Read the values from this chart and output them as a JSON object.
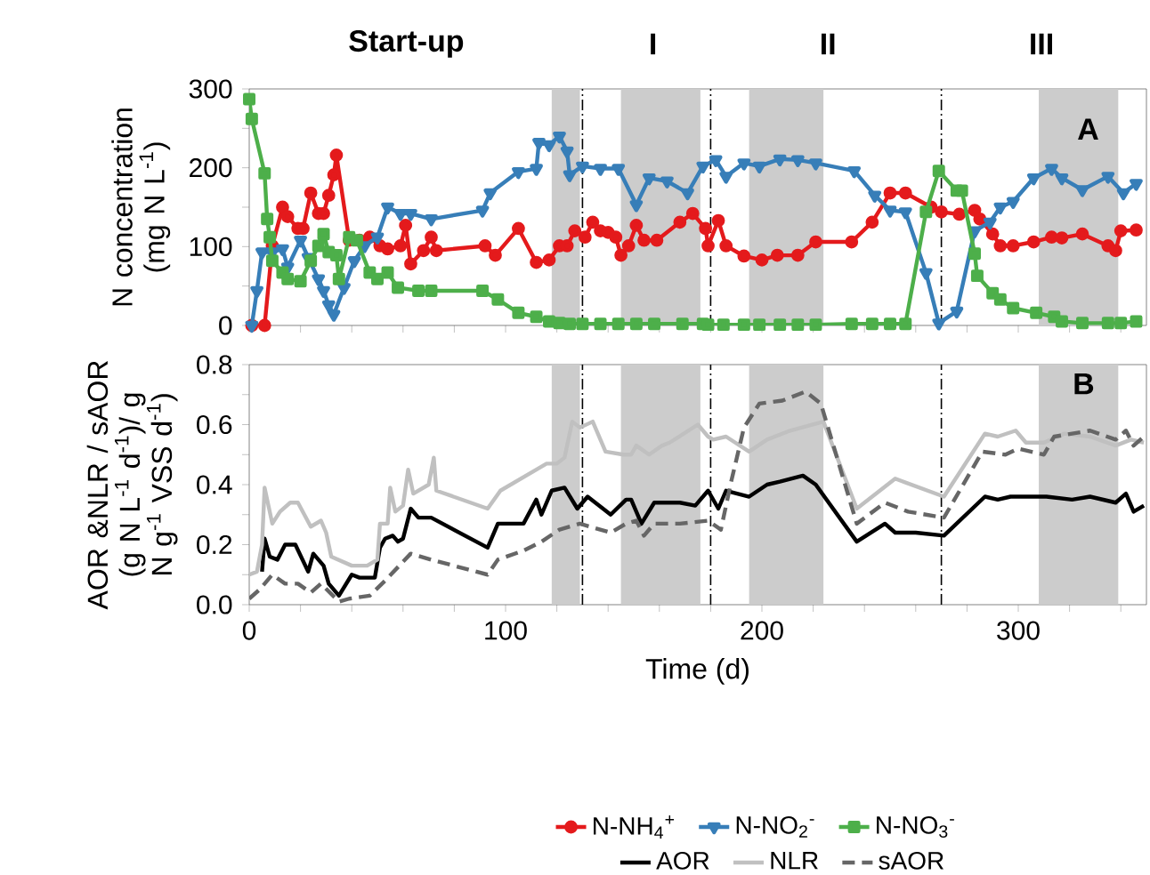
{
  "chart_data": [
    {
      "type": "line",
      "ylabel": "N concentration (mg N L$^{-1}$)",
      "annotations": [
        "Start-up",
        "I",
        "II",
        "III",
        "A"
      ],
      "xlim": [
        0,
        350
      ],
      "ylim": [
        0,
        300
      ],
      "xticks": [
        0,
        {
          "value": 20,
          "label": null
        },
        {
          "value": 40,
          "label": null
        },
        {
          "value": 60,
          "label": null
        },
        {
          "value": 80,
          "label": null
        },
        100,
        {
          "value": 120,
          "label": null
        },
        {
          "value": 140,
          "label": null
        },
        {
          "value": 160,
          "label": null
        },
        {
          "value": 180,
          "label": null
        },
        200,
        {
          "value": 220,
          "label": null
        },
        {
          "value": 240,
          "label": null
        },
        {
          "value": 260,
          "label": null
        },
        {
          "value": 280,
          "label": null
        },
        300,
        {
          "value": 320,
          "label": null
        },
        {
          "value": 340,
          "label": null
        }
      ],
      "yticks": [
        0,
        {
          "value": 50,
          "label": null
        },
        100,
        {
          "value": 150,
          "label": null
        },
        200,
        {
          "value": 250,
          "label": null
        },
        300
      ],
      "tick_labels": "y",
      "legend": "bottom",
      "ref_lines": [
        {
          "axis": "x",
          "value": 130,
          "line_style": "dashed",
          "color": "#000000"
        },
        {
          "axis": "x",
          "value": 180,
          "line_style": "dashed",
          "color": "#000000"
        },
        {
          "axis": "x",
          "value": 270,
          "line_style": "dashed",
          "color": "#000000"
        }
      ],
      "bands": [
        {
          "axis": "x",
          "from": 118,
          "to": 129,
          "color": "#cccccc"
        },
        {
          "axis": "x",
          "from": 145,
          "to": 176,
          "color": "#cccccc"
        },
        {
          "axis": "x",
          "from": 195,
          "to": 224,
          "color": "#cccccc"
        },
        {
          "axis": "x",
          "from": 308,
          "to": 339,
          "color": "#cccccc"
        }
      ],
      "series": [
        {
          "name": "N-NH$_{4}$$^{+}$",
          "color": "#e41a1c",
          "marker": "circle",
          "x": [
            1,
            6,
            9,
            13,
            15,
            19,
            21,
            24,
            27,
            29,
            31,
            33,
            34,
            39,
            43,
            47,
            51,
            54,
            59,
            61,
            63,
            68,
            71,
            73,
            92,
            96,
            105,
            112,
            117,
            121,
            124,
            127,
            131,
            134,
            137,
            140,
            143,
            145,
            148,
            151,
            154,
            159,
            168,
            173,
            178,
            179,
            183,
            186,
            193,
            200,
            206,
            214,
            221,
            235,
            243,
            250,
            256,
            266,
            270,
            277,
            283,
            285,
            290,
            293,
            298,
            306,
            313,
            317,
            325,
            335,
            338,
            340,
            346
          ],
          "values": [
            0,
            0,
            101,
            150,
            138,
            123,
            123,
            168,
            142,
            142,
            165,
            191,
            216,
            108,
            108,
            112,
            101,
            97,
            101,
            127,
            78,
            95,
            112,
            95,
            101,
            89,
            123,
            80,
            83,
            101,
            101,
            120,
            112,
            131,
            120,
            118,
            112,
            89,
            101,
            127,
            108,
            108,
            131,
            142,
            123,
            101,
            133,
            101,
            88,
            83,
            89,
            89,
            106,
            106,
            131,
            168,
            168,
            150,
            144,
            141,
            146,
            135,
            116,
            101,
            101,
            106,
            112,
            111,
            116,
            101,
            95,
            120,
            121
          ]
        },
        {
          "name": "N-NO$_{2}$$^{-}$",
          "color": "#377eb8",
          "marker": "triangle",
          "x": [
            1,
            3,
            5,
            9,
            13,
            15,
            20,
            23,
            27,
            29,
            31,
            33,
            37,
            41,
            45,
            50,
            54,
            59,
            63,
            71,
            91,
            94,
            105,
            112,
            113,
            117,
            121,
            124,
            125,
            130,
            137,
            144,
            151,
            156,
            163,
            171,
            177,
            182,
            186,
            193,
            199,
            207,
            214,
            221,
            236,
            244,
            250,
            256,
            264,
            269,
            276,
            283,
            289,
            293,
            298,
            306,
            313,
            317,
            325,
            335,
            341,
            346
          ],
          "values": [
            0,
            44,
            93,
            93,
            97,
            74,
            108,
            86,
            59,
            44,
            26,
            14,
            48,
            82,
            101,
            112,
            150,
            142,
            142,
            135,
            146,
            168,
            195,
            199,
            232,
            229,
            240,
            221,
            191,
            202,
            199,
            199,
            153,
            187,
            183,
            168,
            202,
            210,
            189,
            206,
            202,
            211,
            210,
            206,
            196,
            165,
            146,
            144,
            67,
            3,
            18,
            120,
            131,
            150,
            157,
            187,
            199,
            187,
            172,
            189,
            168,
            180
          ]
        },
        {
          "name": "N-NO$_{3}$$^{-}$",
          "color": "#4daf4a",
          "marker": "square",
          "x": [
            0,
            1,
            6,
            7,
            8,
            9,
            13,
            15,
            20,
            24,
            27,
            29,
            31,
            34,
            35,
            39,
            42,
            47,
            50,
            54,
            58,
            66,
            71,
            91,
            97,
            105,
            112,
            117,
            121,
            125,
            130,
            137,
            144,
            151,
            158,
            169,
            177,
            179,
            185,
            193,
            199,
            207,
            214,
            221,
            235,
            243,
            250,
            256,
            264,
            269,
            276,
            278,
            283,
            284,
            290,
            293,
            298,
            307,
            314,
            317,
            325,
            335,
            340,
            346
          ],
          "values": [
            287,
            262,
            193,
            135,
            112,
            82,
            67,
            59,
            56,
            82,
            101,
            116,
            93,
            89,
            59,
            112,
            108,
            67,
            59,
            67,
            48,
            44,
            44,
            44,
            33,
            16,
            11,
            5,
            3,
            2,
            2,
            2,
            2,
            2,
            2,
            2,
            2,
            1,
            1,
            1,
            1,
            1,
            1,
            1,
            2,
            2,
            2,
            2,
            144,
            196,
            171,
            171,
            91,
            63,
            41,
            33,
            22,
            16,
            11,
            5,
            3,
            3,
            3,
            5
          ]
        }
      ]
    },
    {
      "type": "line",
      "xlabel": "Time (d)",
      "ylabel": "AOR &NLR / sAOR (g N L$^{-1}$ d$^{-1}$)/ g N g$^{-1}$ VSS d$^{-1}$)",
      "annotations": [
        "B"
      ],
      "xlim": [
        0,
        350
      ],
      "ylim": [
        0,
        0.8
      ],
      "xticks": [
        0,
        {
          "value": 20,
          "label": null
        },
        {
          "value": 40,
          "label": null
        },
        {
          "value": 60,
          "label": null
        },
        {
          "value": 80,
          "label": null
        },
        100,
        {
          "value": 120,
          "label": null
        },
        {
          "value": 140,
          "label": null
        },
        {
          "value": 160,
          "label": null
        },
        {
          "value": 180,
          "label": null
        },
        200,
        {
          "value": 220,
          "label": null
        },
        {
          "value": 240,
          "label": null
        },
        {
          "value": 260,
          "label": null
        },
        {
          "value": 280,
          "label": null
        },
        300,
        {
          "value": 320,
          "label": null
        },
        {
          "value": 340,
          "label": null
        }
      ],
      "yticks": [
        {
          "value": 0,
          "label": "0.0"
        },
        {
          "value": 0.1,
          "label": null
        },
        {
          "value": 0.2,
          "label": "0.2"
        },
        {
          "value": 0.3,
          "label": null
        },
        {
          "value": 0.4,
          "label": "0.4"
        },
        {
          "value": 0.5,
          "label": null
        },
        {
          "value": 0.6,
          "label": "0.6"
        },
        {
          "value": 0.7,
          "label": null
        },
        {
          "value": 0.8,
          "label": "0.8"
        }
      ],
      "legend": "bottom",
      "ref_lines": [
        {
          "axis": "x",
          "value": 130,
          "line_style": "dashed",
          "color": "#000000"
        },
        {
          "axis": "x",
          "value": 180,
          "line_style": "dashed",
          "color": "#000000"
        },
        {
          "axis": "x",
          "value": 270,
          "line_style": "dashed",
          "color": "#000000"
        }
      ],
      "bands": [
        {
          "axis": "x",
          "from": 118,
          "to": 129,
          "color": "#cccccc"
        },
        {
          "axis": "x",
          "from": 145,
          "to": 176,
          "color": "#cccccc"
        },
        {
          "axis": "x",
          "from": 195,
          "to": 224,
          "color": "#cccccc"
        },
        {
          "axis": "x",
          "from": 308,
          "to": 339,
          "color": "#cccccc"
        }
      ],
      "series": [
        {
          "name": "AOR",
          "color": "#000000",
          "line_style": "solid",
          "x": [
            5,
            6,
            8,
            11,
            14,
            18,
            23,
            25,
            29,
            31,
            35,
            40,
            43,
            49,
            51,
            53,
            56,
            58,
            60,
            63,
            66,
            71,
            93,
            97,
            107,
            112,
            114,
            118,
            123,
            128,
            132,
            141,
            147,
            149,
            153,
            158,
            168,
            174,
            179,
            183,
            186,
            195,
            202,
            207,
            216,
            221,
            237,
            248,
            252,
            260,
            271,
            287,
            292,
            297,
            311,
            321,
            328,
            338,
            342,
            345,
            349
          ],
          "values": [
            0.11,
            0.22,
            0.16,
            0.15,
            0.2,
            0.2,
            0.11,
            0.17,
            0.13,
            0.07,
            0.03,
            0.1,
            0.09,
            0.09,
            0.19,
            0.22,
            0.23,
            0.21,
            0.22,
            0.32,
            0.29,
            0.29,
            0.19,
            0.27,
            0.27,
            0.35,
            0.3,
            0.38,
            0.39,
            0.32,
            0.36,
            0.3,
            0.35,
            0.35,
            0.27,
            0.34,
            0.34,
            0.33,
            0.38,
            0.32,
            0.38,
            0.36,
            0.4,
            0.41,
            0.43,
            0.4,
            0.21,
            0.27,
            0.24,
            0.24,
            0.23,
            0.36,
            0.35,
            0.36,
            0.36,
            0.35,
            0.36,
            0.34,
            0.37,
            0.31,
            0.33
          ]
        },
        {
          "name": "NLR",
          "color": "#c0c0c0",
          "line_style": "solid",
          "x": [
            0,
            3,
            5,
            6,
            9,
            12,
            16,
            19,
            24,
            28,
            30,
            32,
            40,
            46,
            50,
            51,
            54,
            55,
            57,
            60,
            62,
            64,
            70,
            72,
            73,
            93,
            98,
            112,
            116,
            120,
            123,
            126,
            129,
            134,
            139,
            146,
            149,
            151,
            156,
            161,
            164,
            175,
            179,
            181,
            186,
            195,
            202,
            211,
            224,
            237,
            252,
            271,
            287,
            292,
            299,
            303,
            310,
            318,
            328,
            338,
            344,
            349
          ],
          "values": [
            0.1,
            0.11,
            0.2,
            0.39,
            0.27,
            0.31,
            0.34,
            0.34,
            0.26,
            0.28,
            0.24,
            0.16,
            0.13,
            0.13,
            0.15,
            0.27,
            0.27,
            0.39,
            0.31,
            0.33,
            0.45,
            0.37,
            0.4,
            0.49,
            0.38,
            0.32,
            0.38,
            0.45,
            0.47,
            0.47,
            0.49,
            0.61,
            0.59,
            0.61,
            0.51,
            0.5,
            0.5,
            0.53,
            0.5,
            0.53,
            0.54,
            0.6,
            0.56,
            0.55,
            0.56,
            0.51,
            0.55,
            0.58,
            0.61,
            0.32,
            0.42,
            0.36,
            0.57,
            0.56,
            0.58,
            0.54,
            0.54,
            0.57,
            0.56,
            0.53,
            0.55,
            0.54
          ]
        },
        {
          "name": "sAOR",
          "color": "#666666",
          "line_style": "dashed",
          "x": [
            0,
            4,
            9,
            14,
            19,
            24,
            28,
            35,
            39,
            47,
            53,
            63,
            71,
            93,
            97,
            107,
            114,
            121,
            129,
            141,
            147,
            151,
            154,
            158,
            168,
            179,
            184,
            188,
            193,
            199,
            208,
            217,
            223,
            237,
            248,
            257,
            271,
            286,
            295,
            300,
            310,
            314,
            328,
            338,
            342,
            345,
            349
          ],
          "values": [
            0.02,
            0.05,
            0.1,
            0.07,
            0.07,
            0.04,
            0.07,
            0.01,
            0.02,
            0.03,
            0.08,
            0.17,
            0.15,
            0.1,
            0.15,
            0.18,
            0.21,
            0.25,
            0.27,
            0.24,
            0.27,
            0.28,
            0.23,
            0.27,
            0.27,
            0.28,
            0.25,
            0.41,
            0.59,
            0.67,
            0.68,
            0.71,
            0.67,
            0.27,
            0.34,
            0.31,
            0.29,
            0.51,
            0.5,
            0.52,
            0.5,
            0.56,
            0.58,
            0.55,
            0.58,
            0.53,
            0.56
          ]
        }
      ]
    }
  ]
}
